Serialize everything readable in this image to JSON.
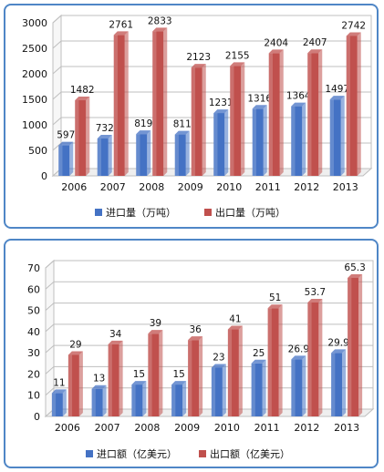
{
  "chart_data": [
    {
      "type": "bar",
      "categories": [
        "2006",
        "2007",
        "2008",
        "2009",
        "2010",
        "2011",
        "2012",
        "2013"
      ],
      "series": [
        {
          "name": "进口量（万吨）",
          "values": [
            597,
            732,
            819,
            811,
            1231,
            1316,
            1364,
            1497
          ],
          "color": "#4472c4"
        },
        {
          "name": "出口量（万吨）",
          "values": [
            1482,
            2761,
            2833,
            2123,
            2155,
            2404,
            2407,
            2742
          ],
          "color": "#c0504d"
        }
      ],
      "ylim": [
        0,
        3000
      ],
      "yticks": [
        0,
        500,
        1000,
        1500,
        2000,
        2500,
        3000
      ],
      "data_labels": true,
      "grid": true,
      "legend": "bottom"
    },
    {
      "type": "bar",
      "categories": [
        "2006",
        "2007",
        "2008",
        "2009",
        "2010",
        "2011",
        "2012",
        "2013"
      ],
      "series": [
        {
          "name": "进口额（亿美元）",
          "values": [
            11,
            13,
            15,
            15,
            23,
            25,
            26.9,
            29.9
          ],
          "color": "#4472c4"
        },
        {
          "name": "出口额（亿美元）",
          "values": [
            29,
            34,
            39,
            36,
            41,
            51,
            53.7,
            65.3
          ],
          "color": "#c0504d"
        }
      ],
      "ylim": [
        0,
        70
      ],
      "yticks": [
        0,
        10,
        20,
        30,
        40,
        50,
        60,
        70
      ],
      "data_labels": true,
      "grid": true,
      "legend": "bottom"
    }
  ]
}
